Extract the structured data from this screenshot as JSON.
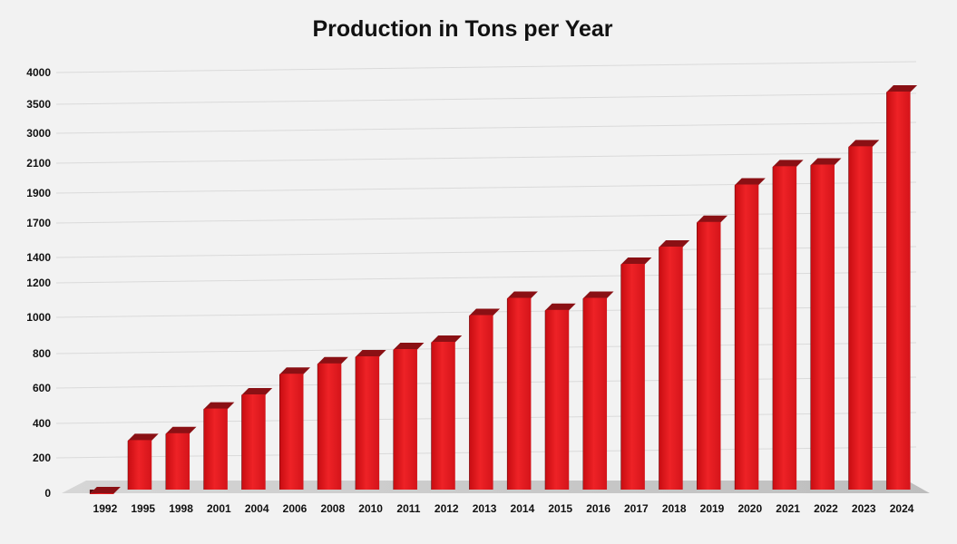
{
  "chart_data": {
    "type": "bar",
    "title": "Production in Tons per Year",
    "xlabel": "",
    "ylabel": "",
    "categories": [
      "1992",
      "1995",
      "1998",
      "2001",
      "2004",
      "2006",
      "2008",
      "2010",
      "2011",
      "2012",
      "2013",
      "2014",
      "2015",
      "2016",
      "2017",
      "2018",
      "2019",
      "2020",
      "2021",
      "2022",
      "2023",
      "2024"
    ],
    "values": [
      20,
      340,
      380,
      520,
      600,
      720,
      780,
      820,
      860,
      900,
      1050,
      1150,
      1080,
      1150,
      1400,
      1550,
      1750,
      2000,
      2200,
      2250,
      2800,
      3800
    ],
    "y_ticks": [
      "0",
      "200",
      "400",
      "600",
      "800",
      "1000",
      "1200",
      "1400",
      "1700",
      "1900",
      "2100",
      "3000",
      "3500",
      "4000"
    ],
    "grid": true,
    "bar_color": "#e0161a",
    "bar_side_color": "#5a0a0c"
  }
}
